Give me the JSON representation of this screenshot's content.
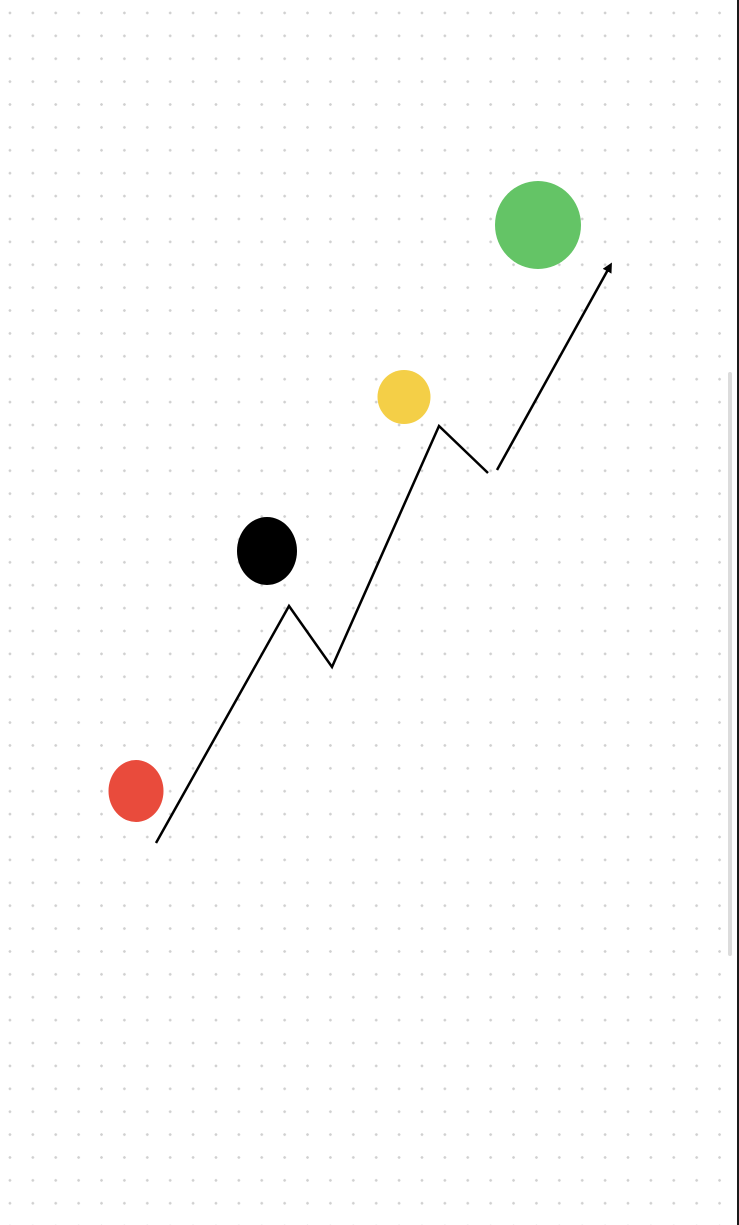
{
  "canvas": {
    "background": "#ffffff",
    "dot_color": "#d0d0d0",
    "grid": "dotted"
  },
  "shapes": {
    "circles": [
      {
        "name": "red-circle",
        "color": "#e94b3c"
      },
      {
        "name": "black-circle",
        "color": "#000000"
      },
      {
        "name": "yellow-circle",
        "color": "#f4cf47"
      },
      {
        "name": "green-circle",
        "color": "#64c466"
      }
    ],
    "arrow": {
      "name": "zigzag-arrow",
      "color": "#000000",
      "direction": "up-right"
    }
  },
  "scrollbar": {
    "thumb_color": "#dcdcdc"
  }
}
